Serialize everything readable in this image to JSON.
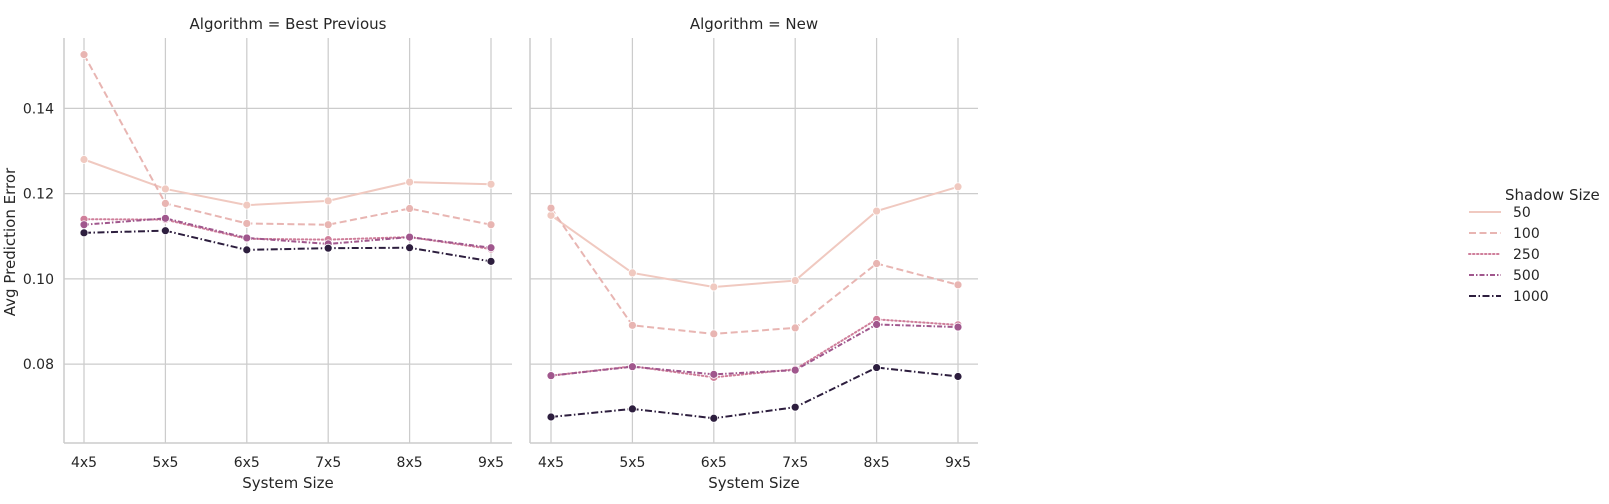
{
  "chart_data": {
    "type": "line",
    "ylabel": "Avg Prediction Error",
    "xlabel": "System Size",
    "categories": [
      "4x5",
      "5x5",
      "6x5",
      "7x5",
      "8x5",
      "9x5"
    ],
    "ylim": [
      0.0615,
      0.1565
    ],
    "yticks": [
      0.08,
      0.1,
      0.12,
      0.14
    ],
    "ytick_labels": [
      "0.08",
      "0.10",
      "0.12",
      "0.14"
    ],
    "grid": true,
    "legend": {
      "title": "Shadow Size",
      "placement": "right",
      "entries": [
        {
          "label": "50",
          "color": "#f0c9c0",
          "dash": "solid"
        },
        {
          "label": "100",
          "color": "#e8b5b2",
          "dash": "dashed"
        },
        {
          "label": "250",
          "color": "#cf7e9a",
          "dash": "dotted"
        },
        {
          "label": "500",
          "color": "#a0578d",
          "dash": "dashdot-dense"
        },
        {
          "label": "1000",
          "color": "#2d1e3e",
          "dash": "dashdot"
        }
      ]
    },
    "panels": [
      {
        "title": "Algorithm = Best Previous",
        "series": [
          {
            "name": "50",
            "values": [
              0.128,
              0.1211,
              0.1173,
              0.1183,
              0.1227,
              0.1222
            ]
          },
          {
            "name": "100",
            "values": [
              0.1526,
              0.1177,
              0.113,
              0.1127,
              0.1165,
              0.1127
            ]
          },
          {
            "name": "250",
            "values": [
              0.114,
              0.1139,
              0.1094,
              0.1092,
              0.1098,
              0.107
            ]
          },
          {
            "name": "500",
            "values": [
              0.1127,
              0.1142,
              0.1096,
              0.1082,
              0.1098,
              0.1073
            ]
          },
          {
            "name": "1000",
            "values": [
              0.1108,
              0.1113,
              0.1068,
              0.1072,
              0.1073,
              0.1041
            ]
          }
        ]
      },
      {
        "title": "Algorithm = New",
        "series": [
          {
            "name": "50",
            "values": [
              0.1149,
              0.1014,
              0.0981,
              0.0996,
              0.1159,
              0.1216
            ]
          },
          {
            "name": "100",
            "values": [
              0.1166,
              0.0891,
              0.0871,
              0.0885,
              0.1036,
              0.0986
            ]
          },
          {
            "name": "250",
            "values": [
              0.0773,
              0.0795,
              0.0769,
              0.0788,
              0.0905,
              0.0892
            ]
          },
          {
            "name": "500",
            "values": [
              0.0773,
              0.0794,
              0.0776,
              0.0786,
              0.0893,
              0.0887
            ]
          },
          {
            "name": "1000",
            "values": [
              0.0676,
              0.0695,
              0.0673,
              0.0699,
              0.0792,
              0.0771
            ]
          }
        ]
      }
    ]
  }
}
